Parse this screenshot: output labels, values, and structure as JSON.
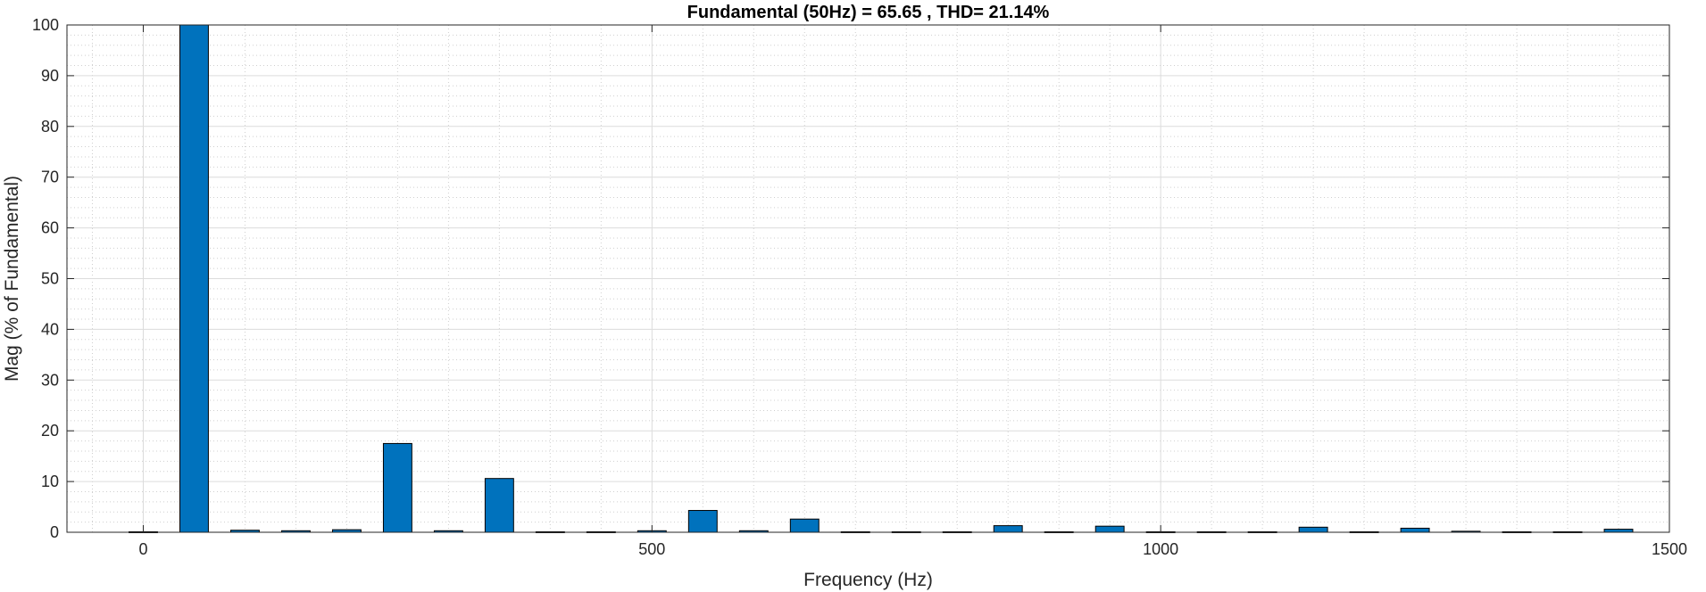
{
  "chart_data": {
    "type": "bar",
    "title": "Fundamental (50Hz) = 65.65 , THD= 21.14%",
    "xlabel": "Frequency (Hz)",
    "ylabel": "Mag (% of Fundamental)",
    "xlim": [
      -75,
      1500
    ],
    "ylim": [
      0,
      100
    ],
    "xticks": [
      0,
      500,
      1000,
      1500
    ],
    "yticks": [
      0,
      10,
      20,
      30,
      40,
      50,
      60,
      70,
      80,
      90,
      100
    ],
    "grid": true,
    "minor_grid": true,
    "bar_color": "#0072BD",
    "bar_edge_color": "#000000",
    "x": [
      0,
      50,
      100,
      150,
      200,
      250,
      300,
      350,
      400,
      450,
      500,
      550,
      600,
      650,
      700,
      750,
      800,
      850,
      900,
      950,
      1000,
      1050,
      1100,
      1150,
      1200,
      1250,
      1300,
      1350,
      1400,
      1450
    ],
    "values": [
      0.1,
      100,
      0.4,
      0.3,
      0.5,
      17.5,
      0.3,
      10.6,
      0.1,
      0.1,
      0.3,
      4.3,
      0.3,
      2.6,
      0.1,
      0.1,
      0.1,
      1.3,
      0.1,
      1.2,
      0.1,
      0.1,
      0.1,
      1.0,
      0.1,
      0.8,
      0.2,
      0.1,
      0.1,
      0.6
    ]
  }
}
